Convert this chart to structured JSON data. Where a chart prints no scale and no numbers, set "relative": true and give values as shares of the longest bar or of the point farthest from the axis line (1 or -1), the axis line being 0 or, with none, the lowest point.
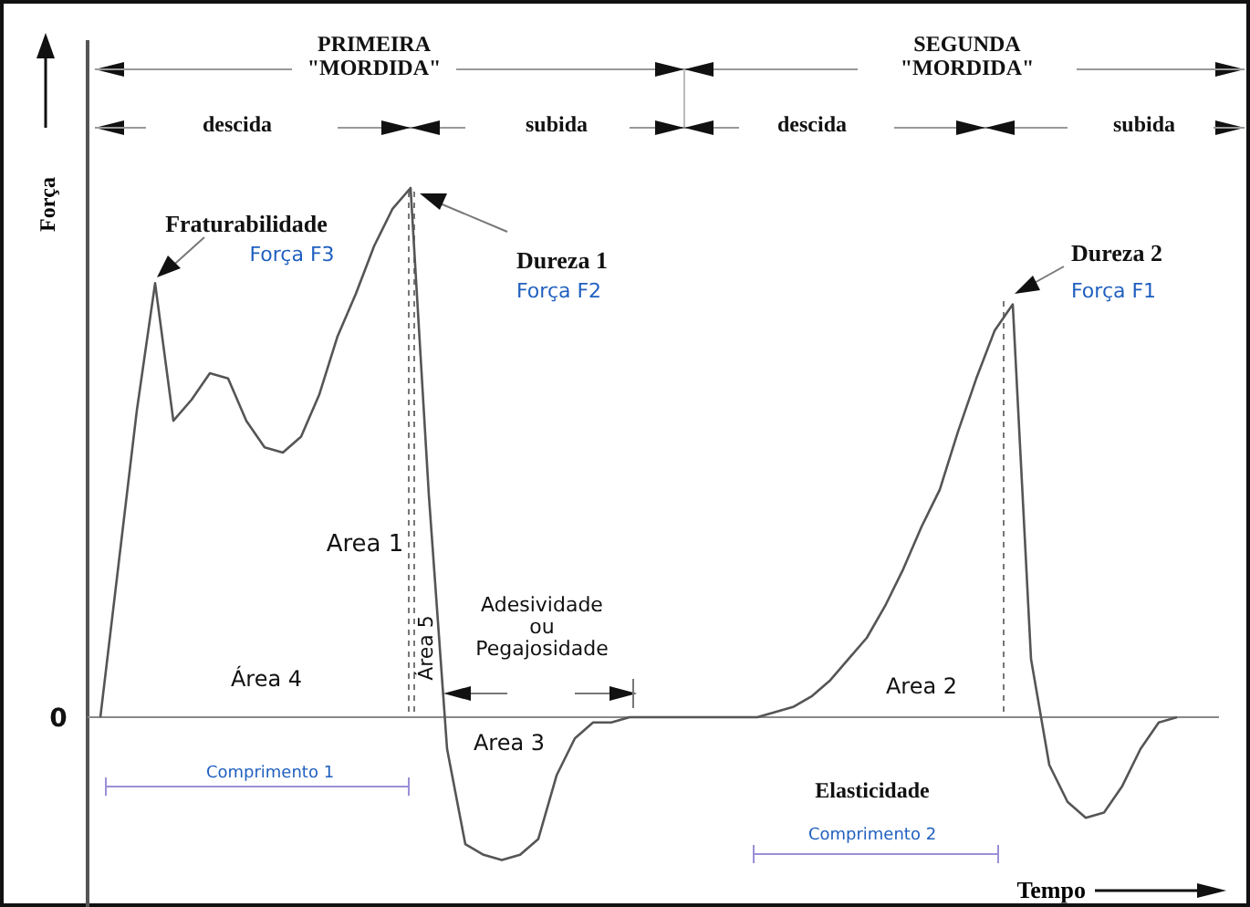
{
  "chart_data": {
    "type": "line",
    "relative": true,
    "xlabel": "Tempo",
    "ylabel": "Força",
    "color": "#555555",
    "categories": [
      null,
      null,
      null,
      null,
      null,
      null,
      null,
      null,
      null,
      null,
      null,
      null,
      null,
      null,
      null,
      null,
      null,
      null,
      null,
      null,
      null,
      null,
      null,
      null,
      null,
      null,
      null,
      null,
      null,
      null,
      null,
      null,
      null,
      null,
      null,
      null,
      null,
      null,
      null,
      null,
      null,
      null,
      null,
      null,
      null,
      null,
      null,
      null,
      null,
      null,
      null,
      null,
      null,
      null,
      null,
      null,
      null,
      null,
      null,
      null
    ],
    "values": [
      0,
      0.29,
      0.58,
      0.82,
      0.56,
      0.6,
      0.65,
      0.64,
      0.56,
      0.51,
      0.5,
      0.53,
      0.61,
      0.72,
      0.8,
      0.89,
      0.96,
      1,
      0.42,
      -0.06,
      -0.24,
      -0.26,
      -0.27,
      -0.26,
      -0.23,
      -0.11,
      -0.04,
      -0.01,
      -0.01,
      0,
      0,
      0,
      0,
      0,
      0,
      0,
      0,
      0.01,
      0.02,
      0.04,
      0.07,
      0.11,
      0.15,
      0.21,
      0.28,
      0.36,
      0.43,
      0.54,
      0.64,
      0.73,
      0.78,
      0.11,
      -0.09,
      -0.16,
      -0.19,
      -0.18,
      -0.13,
      -0.06,
      -0.01,
      0
    ],
    "annotations": [
      "PRIMEIRA\n\"MORDIDA\"",
      "SEGUNDA\n\"MORDIDA\"",
      "descida",
      "subida",
      "descida",
      "subida",
      "Fraturabilidade",
      "Força F3",
      "Dureza 1",
      "Força F2",
      "Dureza 2",
      "Força F1",
      "Area 1",
      "Área 5",
      "Área 4",
      "Adesividade\nou\nPegajosidade",
      "Area 3",
      "Area 2",
      "Comprimento 1",
      "Elasticidade",
      "Comprimento 2",
      "0"
    ]
  }
}
